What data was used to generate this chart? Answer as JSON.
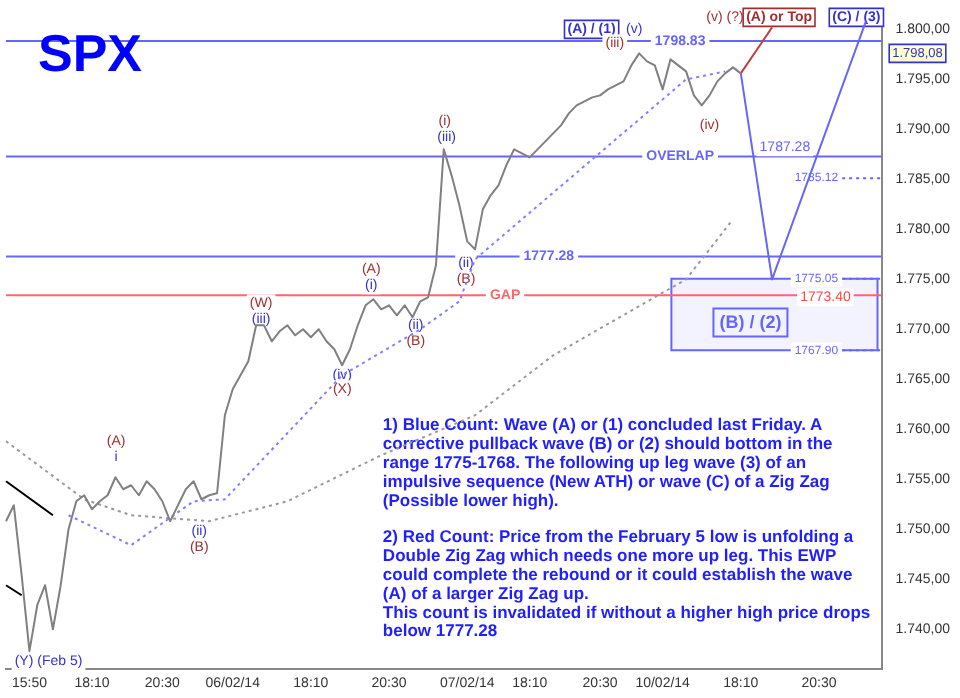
{
  "chart_data": {
    "type": "line",
    "title": "SPX",
    "categories": [
      null,
      null,
      null,
      "15:50",
      null,
      null,
      null,
      null,
      null,
      null,
      null,
      "18:10",
      null,
      null,
      null,
      null,
      null,
      null,
      null,
      null,
      "20:30",
      null,
      null,
      null,
      null,
      null,
      null,
      null,
      null,
      "06/02/14",
      null,
      null,
      null,
      null,
      null,
      null,
      null,
      null,
      null,
      "18:10",
      null,
      null,
      null,
      null,
      null,
      null,
      null,
      null,
      null,
      "20:30",
      null,
      null,
      null,
      null,
      null,
      null,
      null,
      null,
      null,
      "07/02/14",
      null,
      null,
      null,
      null,
      null,
      null,
      null,
      "18:10",
      null,
      null,
      null,
      null,
      null,
      null,
      null,
      null,
      "20:30",
      null,
      null,
      null,
      null,
      null,
      null,
      null,
      "10/02/14",
      null,
      null,
      null,
      null,
      null,
      null,
      null,
      null,
      null,
      "18:10",
      null,
      null,
      null,
      null,
      null,
      null,
      null,
      null,
      null,
      "20:30",
      null,
      null,
      null,
      null,
      null,
      null,
      null,
      null
    ],
    "ylim": [
      1736,
      1801.5
    ],
    "yticks": [
      {
        "value": 1740,
        "label": "1.740,00"
      },
      {
        "value": 1745,
        "label": "1.745,00"
      },
      {
        "value": 1750,
        "label": "1.750,00"
      },
      {
        "value": 1755,
        "label": "1.755,00"
      },
      {
        "value": 1760,
        "label": "1.760,00"
      },
      {
        "value": 1765,
        "label": "1.765,00"
      },
      {
        "value": 1770,
        "label": "1.770,00"
      },
      {
        "value": 1775,
        "label": "1.775,00"
      },
      {
        "value": 1780,
        "label": "1.780,00"
      },
      {
        "value": 1785,
        "label": "1.785,00"
      },
      {
        "value": 1790,
        "label": "1.790,00"
      },
      {
        "value": 1795,
        "label": "1.795,00"
      },
      {
        "value": 1800,
        "label": "1.800,00"
      }
    ],
    "grid": false,
    "series": [
      {
        "color": "#808080",
        "values": [
          1750.8,
          1752.4,
          1745.4,
          1737.8,
          1742.4,
          1744.4,
          1740,
          1744.4,
          1750,
          1752.8,
          1753.4,
          1752,
          1752.8,
          1753.4,
          1755.2,
          1754,
          1754.4,
          1753.4,
          1754.8,
          1754,
          1752.8,
          1750.8,
          1752.4,
          1754,
          1754.8,
          1753,
          1753.4,
          1753.6,
          1761.4,
          1764,
          1765.4,
          1766.8,
          1770.4,
          1770.4,
          1768.8,
          1769.8,
          1770.4,
          1769.4,
          1770,
          1769.2,
          1770,
          1768.8,
          1768,
          1766.4,
          1768,
          1770.4,
          1772.4,
          1773,
          1772,
          1772.4,
          1771.4,
          1772.4,
          1771.2,
          1772.8,
          1773.2,
          1776.4,
          1788,
          1785.4,
          1782.4,
          1778.8,
          1778,
          1782,
          1783.4,
          1784.4,
          1786.4,
          1788,
          1787.6,
          1787.2,
          1788,
          1788.8,
          1789.6,
          1790.4,
          1791.6,
          1792.4,
          1792.8,
          1793.2,
          1793.4,
          1794,
          1794.4,
          1794.8,
          1796.4,
          1797.6,
          1796.8,
          1796.4,
          1794,
          1797,
          1796.4,
          1795.8,
          1793.4,
          1792.4,
          1793.4,
          1794.8,
          1795.6,
          1796.2,
          1795.6,
          null,
          null,
          null,
          null,
          null,
          null,
          null,
          null,
          null,
          null,
          null,
          null,
          null,
          null,
          null,
          null,
          null,
          null
        ]
      },
      {
        "color": "#8080ff",
        "line_style": "dotted",
        "values": [
          null,
          null,
          null,
          null,
          null,
          null,
          null,
          null,
          1751.4,
          null,
          null,
          null,
          null,
          null,
          null,
          null,
          1748.4,
          null,
          null,
          null,
          null,
          null,
          null,
          null,
          1752.8,
          null,
          null,
          null,
          1753,
          null,
          null,
          null,
          null,
          null,
          null,
          null,
          null,
          null,
          null,
          null,
          null,
          null,
          null,
          1765.4,
          null,
          null,
          null,
          null,
          null,
          null,
          null,
          null,
          null,
          1770,
          null,
          null,
          null,
          null,
          1772.8,
          null,
          1777,
          null,
          null,
          null,
          null,
          null,
          null,
          null,
          null,
          null,
          null,
          null,
          1785,
          null,
          null,
          null,
          null,
          null,
          null,
          null,
          null,
          null,
          null,
          null,
          null,
          null,
          null,
          1795,
          null,
          null,
          null,
          null,
          1795.8,
          null,
          null,
          null,
          null,
          null,
          null,
          null,
          null,
          null,
          null,
          null,
          null,
          null,
          null,
          null,
          null,
          null,
          null,
          null,
          null
        ]
      },
      {
        "color": "#999999",
        "line_style": "dotted",
        "values": [
          1758.8,
          null,
          null,
          null,
          null,
          null,
          null,
          null,
          null,
          null,
          1753,
          null,
          null,
          null,
          null,
          null,
          1751.4,
          null,
          null,
          null,
          null,
          null,
          null,
          null,
          null,
          null,
          1750.8,
          null,
          null,
          null,
          null,
          null,
          null,
          null,
          null,
          null,
          1752.8,
          null,
          null,
          null,
          null,
          null,
          null,
          null,
          null,
          null,
          null,
          null,
          1757.4,
          null,
          null,
          null,
          null,
          null,
          null,
          null,
          null,
          null,
          null,
          null,
          1761.4,
          null,
          null,
          null,
          null,
          null,
          null,
          null,
          null,
          null,
          1767.4,
          null,
          null,
          null,
          null,
          null,
          null,
          null,
          null,
          null,
          null,
          null,
          null,
          null,
          null,
          null,
          null,
          1775,
          null,
          null,
          null,
          null,
          null,
          1781,
          null,
          null,
          null,
          null,
          null,
          null,
          null,
          null,
          null,
          null,
          null,
          null,
          null,
          null,
          null,
          null,
          null,
          null,
          null
        ]
      },
      {
        "color": "#6666ff",
        "values": [
          null,
          null,
          null,
          null,
          null,
          null,
          null,
          null,
          null,
          null,
          null,
          null,
          null,
          null,
          null,
          null,
          null,
          null,
          null,
          null,
          null,
          null,
          null,
          null,
          null,
          null,
          null,
          null,
          null,
          null,
          null,
          null,
          null,
          null,
          null,
          null,
          null,
          null,
          null,
          null,
          null,
          null,
          null,
          null,
          null,
          null,
          null,
          null,
          null,
          null,
          null,
          null,
          null,
          null,
          null,
          null,
          null,
          null,
          null,
          null,
          null,
          null,
          null,
          null,
          null,
          null,
          null,
          null,
          null,
          null,
          null,
          null,
          null,
          null,
          null,
          null,
          null,
          null,
          null,
          null,
          null,
          null,
          null,
          null,
          null,
          null,
          null,
          null,
          null,
          null,
          null,
          null,
          null,
          null,
          1795.6,
          null,
          null,
          null,
          1775,
          null,
          null,
          null,
          null,
          null,
          null,
          null,
          null,
          null,
          null,
          null,
          1800.8,
          null,
          null
        ]
      },
      {
        "color": "#c04040",
        "values": [
          null,
          null,
          null,
          null,
          null,
          null,
          null,
          null,
          null,
          null,
          null,
          null,
          null,
          null,
          null,
          null,
          null,
          null,
          null,
          null,
          null,
          null,
          null,
          null,
          null,
          null,
          null,
          null,
          null,
          null,
          null,
          null,
          null,
          null,
          null,
          null,
          null,
          null,
          null,
          null,
          null,
          null,
          null,
          null,
          null,
          null,
          null,
          null,
          null,
          null,
          null,
          null,
          null,
          null,
          null,
          null,
          null,
          null,
          null,
          null,
          null,
          null,
          null,
          null,
          null,
          null,
          null,
          null,
          null,
          null,
          null,
          null,
          null,
          null,
          null,
          null,
          null,
          null,
          null,
          null,
          null,
          null,
          null,
          null,
          null,
          null,
          null,
          null,
          null,
          null,
          null,
          null,
          null,
          null,
          1795.6,
          null,
          null,
          null,
          1800.2,
          null,
          null,
          null,
          null,
          null,
          null,
          null,
          null,
          null,
          null,
          null,
          null,
          null,
          null
        ]
      },
      {
        "color": "#000000",
        "values": [
          1754.8,
          null,
          null,
          null,
          null,
          null,
          1751.4,
          null,
          null,
          null,
          null,
          null,
          null,
          null,
          null,
          null,
          null,
          null,
          null,
          null,
          null,
          null,
          null,
          null,
          null,
          null,
          null,
          null,
          null,
          null,
          null,
          null,
          null,
          null,
          null,
          null,
          null,
          null,
          null,
          null,
          null,
          null,
          null,
          null,
          null,
          null,
          null,
          null,
          null,
          null,
          null,
          null,
          null,
          null,
          null,
          null,
          null,
          null,
          null,
          null,
          null,
          null,
          null,
          null,
          null,
          null,
          null,
          null,
          null,
          null,
          null,
          null,
          null,
          null,
          null,
          null,
          null,
          null,
          null,
          null,
          null,
          null,
          null,
          null,
          null,
          null,
          null,
          null,
          null,
          null,
          null,
          null,
          null,
          null,
          null,
          null,
          null,
          null,
          null,
          null,
          null,
          null,
          null,
          null,
          null,
          null,
          null,
          null,
          null,
          null,
          null,
          null,
          null
        ]
      },
      {
        "color": "#000000",
        "values": [
          1744.4,
          null,
          1743.4,
          null,
          null,
          null,
          null,
          null,
          null,
          null,
          null,
          null,
          null,
          null,
          null,
          null,
          null,
          null,
          null,
          null,
          null,
          null,
          null,
          null,
          null,
          null,
          null,
          null,
          null,
          null,
          null,
          null,
          null,
          null,
          null,
          null,
          null,
          null,
          null,
          null,
          null,
          null,
          null,
          null,
          null,
          null,
          null,
          null,
          null,
          null,
          null,
          null,
          null,
          null,
          null,
          null,
          null,
          null,
          null,
          null,
          null,
          null,
          null,
          null,
          null,
          null,
          null,
          null,
          null,
          null,
          null,
          null,
          null,
          null,
          null,
          null,
          null,
          null,
          null,
          null,
          null,
          null,
          null,
          null,
          null,
          null,
          null,
          null,
          null,
          null,
          null,
          null,
          null,
          null,
          null,
          null,
          null,
          null,
          null,
          null,
          null,
          null,
          null,
          null,
          null,
          null,
          null,
          null,
          null,
          null,
          null,
          null,
          null
        ]
      }
    ],
    "ref_lines": [
      {
        "axis": "y",
        "value": 1798.83,
        "label": "1798.83",
        "color": "#6666ff"
      },
      {
        "axis": "y",
        "value": 1787.28,
        "label": "OVERLAP",
        "color": "#6666ff"
      },
      {
        "axis": "y",
        "value": 1785.12,
        "label": "1785.12",
        "color": "#6666ff",
        "line_style": "dotted"
      },
      {
        "axis": "y",
        "value": 1777.28,
        "label": "1777.28",
        "color": "#6666ff"
      },
      {
        "axis": "y",
        "value": 1773.4,
        "label": "GAP",
        "color": "#ff6666"
      },
      {
        "axis": "y",
        "value": 1775.05,
        "label": "1775.05",
        "color": "#6666ff",
        "line_style": "dotted"
      },
      {
        "axis": "y",
        "value": 1767.9,
        "label": "1767.90",
        "color": "#6666ff",
        "line_style": "dotted"
      }
    ],
    "bands": [
      {
        "axis": "y",
        "from": 1767.9,
        "to": 1775.05,
        "label": "(B) / (2)",
        "color": "#6666ff"
      }
    ],
    "annotations": [
      "1) Blue Count: Wave (A) or (1) concluded last Friday. A corrective pullback wave (B) or (2) should bottom in the range 1775-1768. The following up leg wave (3) of an impulsive sequence (New ATH) or wave (C) of a Zig Zag (Possible lower high).",
      "2) Red Count: Price from the February 5 low is unfolding a Double Zig Zag which needs one more up leg. This EWP could complete the rebound or it could establish the wave (A) of a larger Zig Zag up.",
      "This count is invalidated if without a higher high price drops below 1777.28",
      "(A) / (1)",
      "(iii)",
      "(v)",
      "(iv)",
      "(v) (?)",
      "(A) or Top",
      "(C) / (3)",
      "1787.28",
      "1773.40",
      "1.798,08",
      "(i)",
      "(iii)",
      "(ii)",
      "(B)",
      "(W)",
      "(iii)",
      "(A)",
      "(i)",
      "(ii)",
      "(B)",
      "(iv)",
      "(X)",
      "(A)",
      "i",
      "(ii)",
      "(B)",
      "(Y) (Feb 5)"
    ]
  }
}
